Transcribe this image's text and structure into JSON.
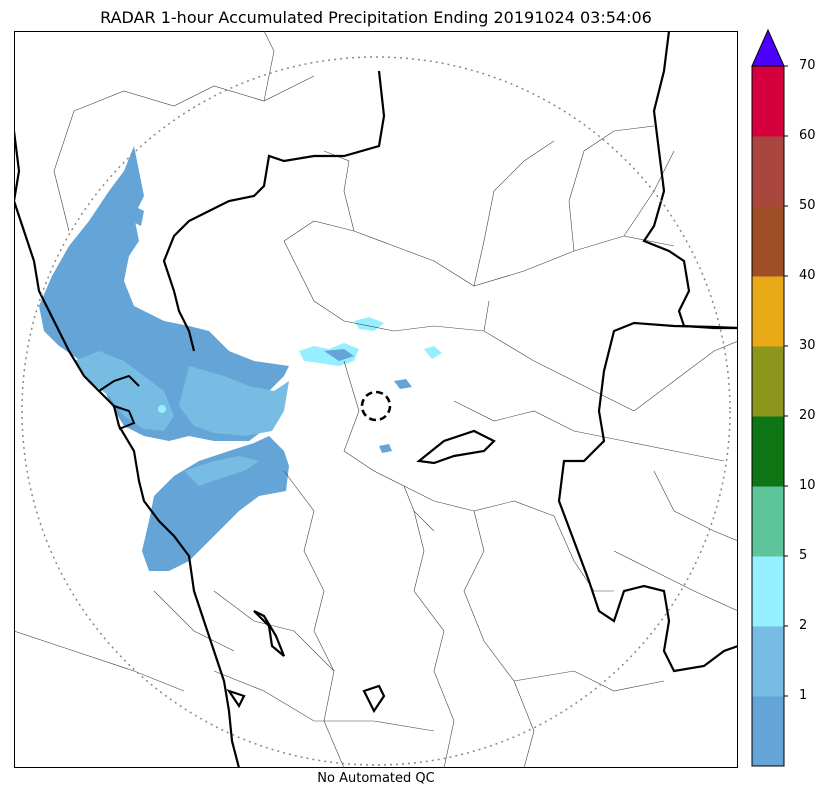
{
  "title": "RADAR 1-hour Accumulated Precipitation Ending 20191024 03:54:06",
  "footer_text": "No Automated QC",
  "map": {
    "features": [
      "radar-range-ring",
      "radar-site-marker",
      "coastline",
      "state-borders",
      "district-borders",
      "precipitation-field"
    ]
  },
  "colorbar": {
    "ticks": [
      "1",
      "2",
      "5",
      "10",
      "20",
      "30",
      "40",
      "50",
      "60",
      "70"
    ],
    "extend": "max",
    "extend_color": "#4B00FF",
    "colors": [
      "#64A4D6",
      "#77BCE3",
      "#96EFFF",
      "#5EC49A",
      "#0E7515",
      "#8C961C",
      "#E8AA17",
      "#9F4F27",
      "#A9473F",
      "#D6003F"
    ]
  }
}
